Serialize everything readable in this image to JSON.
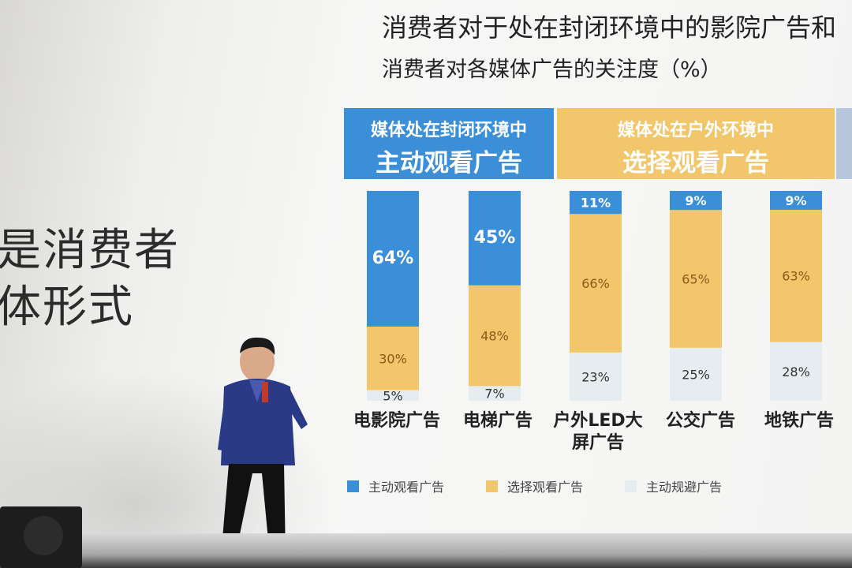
{
  "slide": {
    "title": "消费者对于处在封闭环境中的影院广告和",
    "subtitle": "消费者对各媒体广告的关注度（%）"
  },
  "left_text": {
    "line1": "是消费者",
    "line2": "体形式"
  },
  "headers": {
    "blue_line1": "媒体处在封闭环境中",
    "blue_line2": "主动观看广告",
    "yellow_line1": "媒体处在户外环境中",
    "yellow_line2": "选择观看广告"
  },
  "colors": {
    "blue": "#3b8ed8",
    "yellow": "#f2c66a",
    "light": "#e6edf0"
  },
  "chart_data": {
    "type": "bar",
    "stacked": true,
    "percent_labels": true,
    "categories": [
      "电影院广告",
      "电梯广告",
      "户外LED大屏广告",
      "公交广告",
      "地铁广告"
    ],
    "category_display": [
      [
        "电影院广告"
      ],
      [
        "电梯广告"
      ],
      [
        "户外LED大",
        "屏广告"
      ],
      [
        "公交广告"
      ],
      [
        "地铁广告"
      ]
    ],
    "series": [
      {
        "name": "主动观看广告",
        "values": [
          64,
          45,
          11,
          9,
          9
        ]
      },
      {
        "name": "选择观看广告",
        "values": [
          30,
          48,
          66,
          65,
          63
        ]
      },
      {
        "name": "主动规避广告",
        "values": [
          5,
          7,
          23,
          25,
          28
        ]
      }
    ],
    "value_labels": [
      [
        "64%",
        "30%",
        "5%"
      ],
      [
        "45%",
        "48%",
        "7%"
      ],
      [
        "11%",
        "66%",
        "23%"
      ],
      [
        "9%",
        "65%",
        "25%"
      ],
      [
        "9%",
        "63%",
        "28%"
      ]
    ]
  },
  "legend": {
    "items": [
      "主动观看广告",
      "选择观看广告",
      "主动规避广告"
    ]
  },
  "presenter": {
    "icon": "person-presenting"
  }
}
